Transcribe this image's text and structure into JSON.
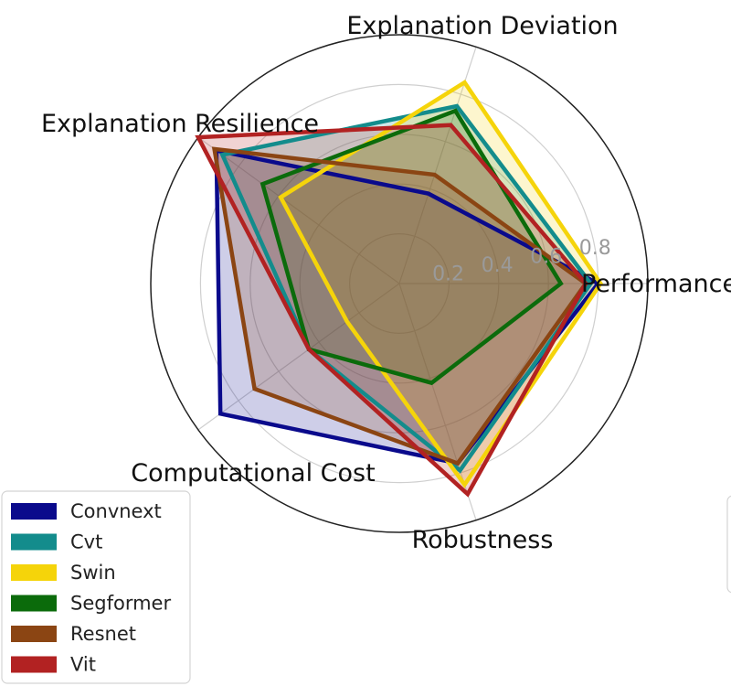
{
  "chart_data": {
    "type": "radar",
    "axes": [
      "Performance",
      "Explanation Deviation",
      "Explanation Resilience",
      "Computational Cost",
      "Robustness"
    ],
    "rlim": [
      0,
      1
    ],
    "radial_ticks": [
      0.2,
      0.4,
      0.6,
      0.8
    ],
    "radial_tick_labels": [
      "0.2",
      "0.4",
      "0.6",
      "0.8"
    ],
    "grid": true,
    "legend_position": "lower-left",
    "series": [
      {
        "name": "Convnext",
        "color": "#0a0a8c",
        "values": [
          0.8,
          0.38,
          0.91,
          0.89,
          0.76
        ]
      },
      {
        "name": "Cvt",
        "color": "#138c8c",
        "values": [
          0.77,
          0.75,
          0.88,
          0.45,
          0.79
        ]
      },
      {
        "name": "Swin",
        "color": "#f5d40a",
        "values": [
          0.81,
          0.85,
          0.59,
          0.26,
          0.85
        ]
      },
      {
        "name": "Segformer",
        "color": "#0b6b0b",
        "values": [
          0.65,
          0.73,
          0.68,
          0.45,
          0.42
        ]
      },
      {
        "name": "Resnet",
        "color": "#8b4513",
        "values": [
          0.75,
          0.46,
          0.92,
          0.72,
          0.76
        ]
      },
      {
        "name": "Vit",
        "color": "#b22222",
        "values": [
          0.75,
          0.67,
          1.0,
          0.45,
          0.89
        ]
      }
    ]
  }
}
